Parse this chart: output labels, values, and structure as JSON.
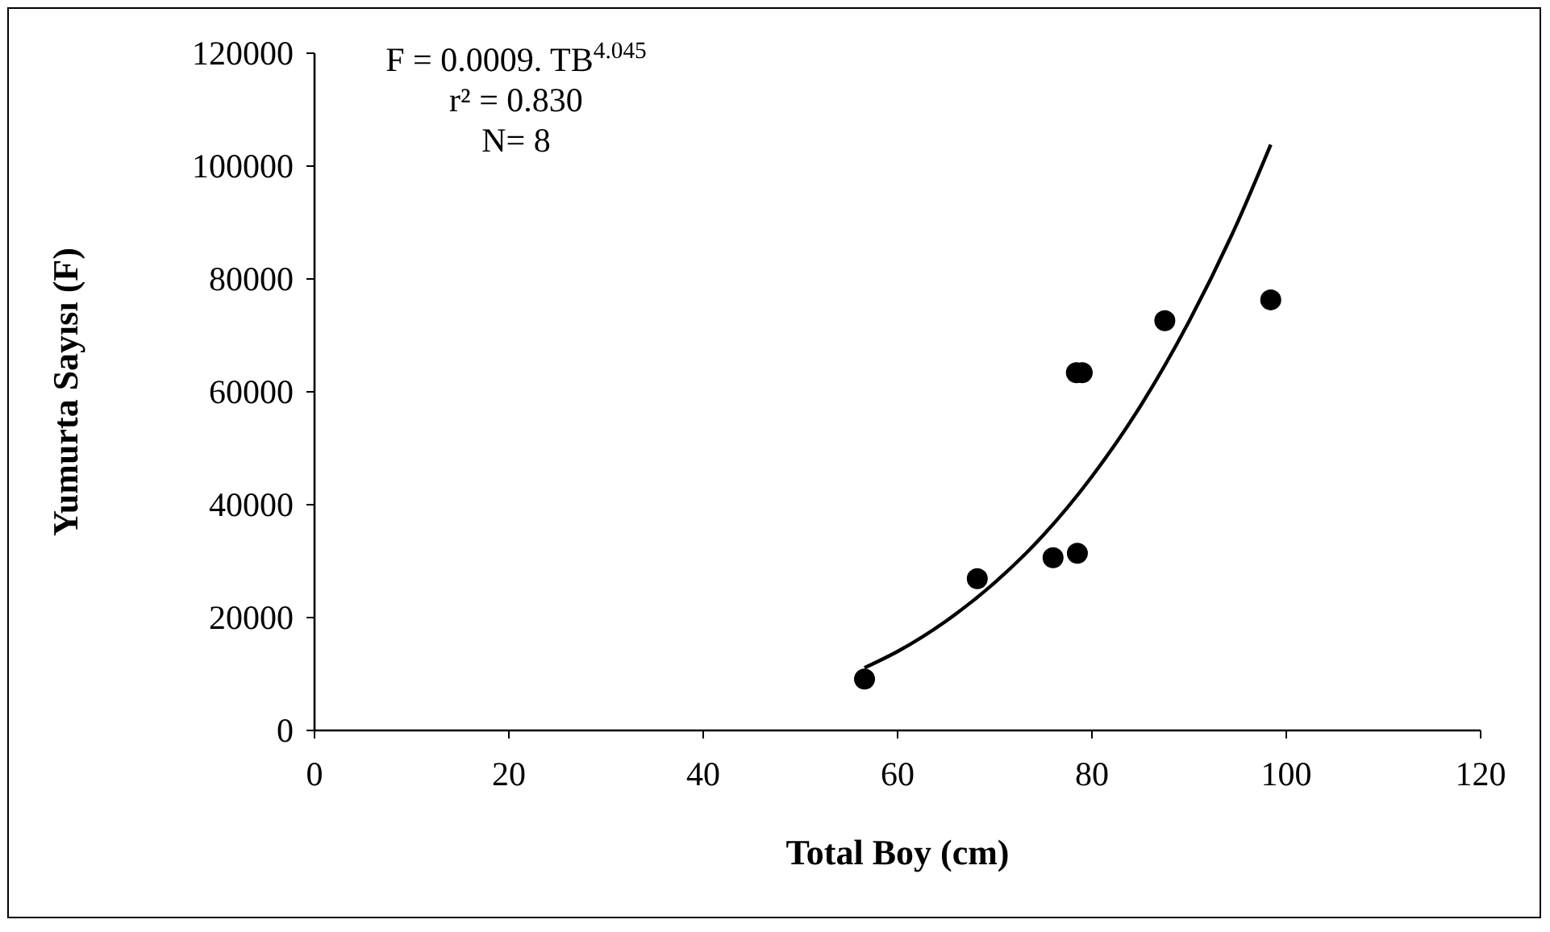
{
  "chart_data": {
    "type": "scatter",
    "xlabel": "Total Boy (cm)",
    "ylabel": "Yumurta Sayısı (F)",
    "xlim": [
      0,
      120
    ],
    "xticks": [
      0,
      20,
      40,
      60,
      80,
      100,
      120
    ],
    "ylim": [
      0,
      120000
    ],
    "yticks": [
      0,
      20000,
      40000,
      60000,
      80000,
      100000,
      120000
    ],
    "grid": false,
    "marker": "circle",
    "annotations": [
      "F = 0.0009. TB$^{4.045}$",
      "r² = 0.830",
      "N= 8"
    ],
    "series": [
      {
        "color": "#000000",
        "x": [
          56.6,
          68.2,
          76.0,
          78.5,
          78.4,
          79.0,
          87.5,
          98.4
        ],
        "values": [
          9100,
          26900,
          30600,
          31400,
          63400,
          63400,
          72600,
          76300
        ]
      },
      {
        "type": "line",
        "color": "#000000",
        "marker": "none",
        "x": [
          56.6,
          60,
          65,
          70,
          75,
          80,
          85,
          90,
          95,
          98.4
        ],
        "values": [
          11100,
          14000,
          19400,
          26200,
          34600,
          45000,
          57500,
          72500,
          90100,
          103800
        ]
      }
    ]
  }
}
